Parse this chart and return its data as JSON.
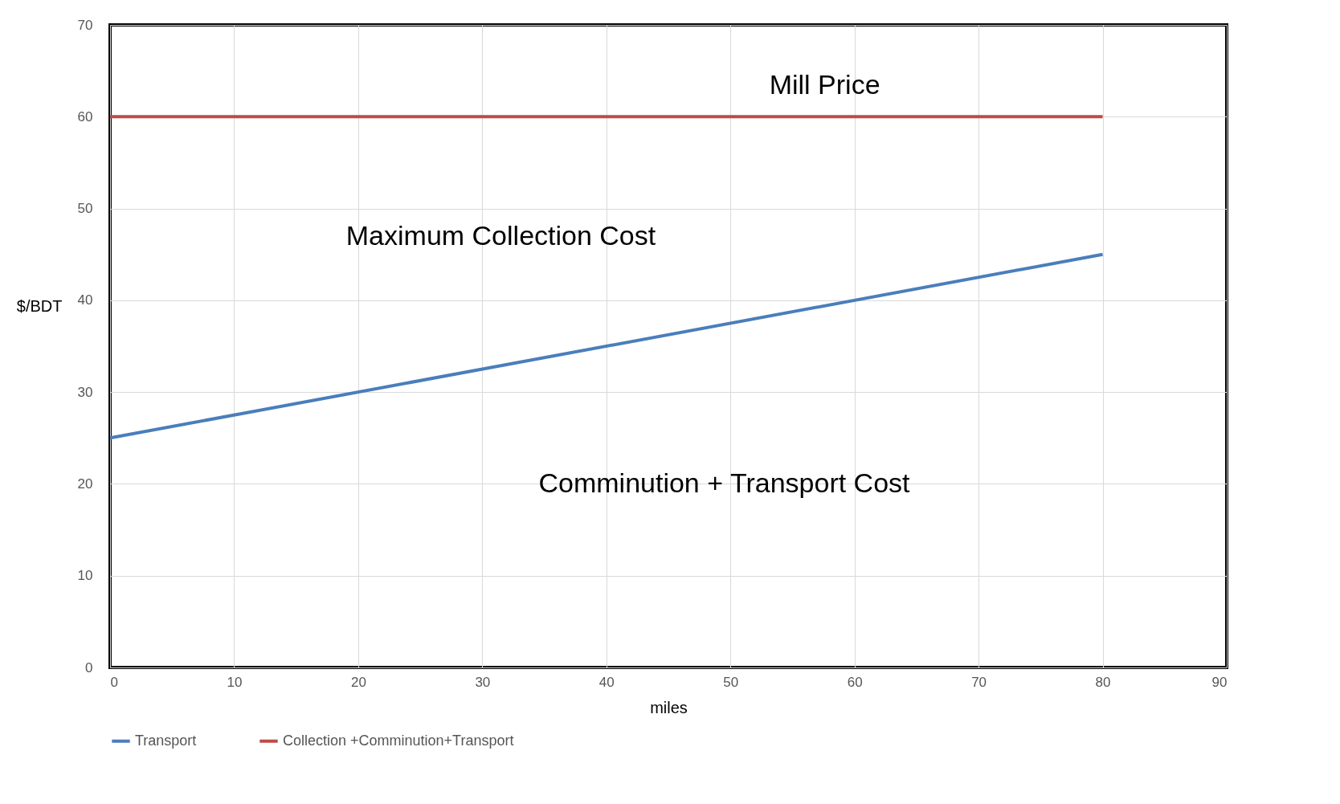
{
  "chart_data": {
    "type": "line",
    "xlabel": "miles",
    "ylabel": "$/BDT",
    "series": [
      {
        "name": "Transport",
        "color": "#4a7ebb",
        "values": [
          25,
          45
        ]
      },
      {
        "name": "Collection +Comminution+Transport",
        "color": "#be4b48",
        "values": [
          60,
          60
        ]
      }
    ],
    "x": [
      0,
      80
    ],
    "xlim": [
      0,
      90
    ],
    "xticks": [
      0,
      10,
      20,
      30,
      40,
      50,
      60,
      70,
      80,
      90
    ],
    "ylim": [
      0,
      70
    ],
    "yticks": [
      0,
      10,
      20,
      30,
      40,
      50,
      60,
      70
    ],
    "grid": true,
    "legend": "bottom",
    "marker": "none",
    "line_style": "solid",
    "annotations": [
      "Mill Price",
      "Maximum Collection Cost",
      "Comminution + Transport Cost"
    ]
  }
}
